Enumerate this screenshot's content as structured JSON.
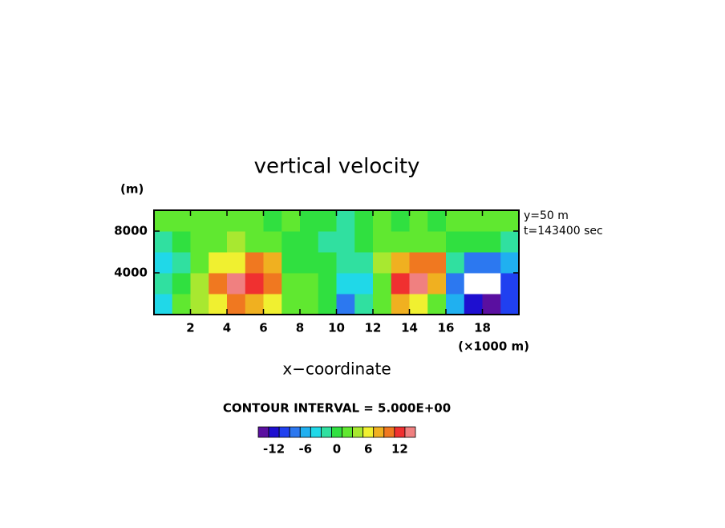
{
  "chart_data": {
    "type": "heatmap",
    "title": "vertical velocity",
    "x_label": "x−coordinate",
    "x_unit": "(×1000 m)",
    "y_unit": "(m)",
    "annotations": [
      "y=50 m",
      "t=143400 sec"
    ],
    "contour_note": "CONTOUR INTERVAL = 5.000E+00",
    "x": [
      0.5,
      1.5,
      2.5,
      3.5,
      4.5,
      5.5,
      6.5,
      7.5,
      8.5,
      9.5,
      10.5,
      11.5,
      12.5,
      13.5,
      14.5,
      15.5,
      16.5,
      17.5,
      18.5,
      19.5
    ],
    "y": [
      1000,
      3000,
      5000,
      7000,
      9000
    ],
    "z": [
      [
        -4,
        1,
        3,
        5,
        10,
        8,
        5,
        2,
        1,
        -1,
        -8,
        -3,
        1,
        8,
        6,
        2,
        -6,
        -12,
        -14,
        -10
      ],
      [
        -3,
        0,
        3,
        9,
        13,
        12,
        9,
        1,
        2,
        0,
        -5,
        -4,
        2,
        12,
        13,
        8,
        -8,
        -16,
        -16,
        -11
      ],
      [
        -4,
        -3,
        1,
        6,
        5,
        10,
        8,
        0,
        -1,
        -1,
        -2,
        -2,
        3,
        7,
        10,
        9,
        -3,
        -8,
        -9,
        -6
      ],
      [
        -3,
        -1,
        1,
        2,
        3,
        1,
        2,
        -1,
        -1,
        -3,
        -2,
        -1,
        1,
        2,
        2,
        1,
        0,
        -1,
        -1,
        -2
      ],
      [
        1,
        1,
        2,
        1,
        1,
        1,
        0,
        1,
        0,
        -1,
        -2,
        0,
        1,
        0,
        1,
        0,
        1,
        1,
        1,
        1
      ]
    ],
    "xlim": [
      0,
      20
    ],
    "ylim": [
      0,
      10000
    ],
    "xticks": [
      2,
      4,
      6,
      8,
      10,
      12,
      14,
      16,
      18
    ],
    "yticks": [
      4000,
      8000
    ],
    "colorbar": {
      "levels": [
        -15,
        -13,
        -11,
        -9,
        -7,
        -5,
        -3,
        -1,
        1,
        3,
        5,
        7,
        9,
        11,
        13,
        15
      ],
      "colors": [
        "#5a0fa0",
        "#1e0fd0",
        "#2040f0",
        "#2c78f0",
        "#20b0f0",
        "#20d8e8",
        "#30e0a0",
        "#30e040",
        "#60e830",
        "#a8e830",
        "#f0f030",
        "#f0b020",
        "#f07820",
        "#f03030",
        "#f08080"
      ],
      "ticks": [
        -12,
        -6,
        0,
        6,
        12
      ]
    }
  }
}
